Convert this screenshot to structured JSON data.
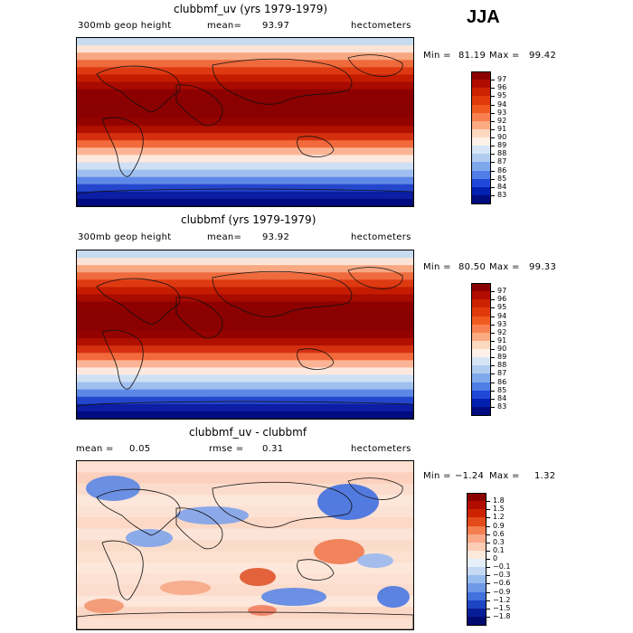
{
  "season": "JJA",
  "panels": [
    {
      "title": "clubbmf_uv (yrs 1979-1979)",
      "left_label": "300mb geop height",
      "mean_label": "mean=",
      "mean_value": "93.97",
      "units": "hectometers",
      "min_label": "Min =",
      "min_value": "81.19",
      "max_label": "Max =",
      "max_value": "99.42",
      "colorbar": {
        "labels": [
          "97",
          "96",
          "95",
          "94",
          "93",
          "92",
          "91",
          "90",
          "89",
          "88",
          "87",
          "86",
          "85",
          "84",
          "83"
        ],
        "colors": [
          "#8b0000",
          "#b10c00",
          "#cc2200",
          "#e03a0a",
          "#f05a20",
          "#f88050",
          "#fcaa80",
          "#fdd8c0",
          "#fdf1e8",
          "#d6e6f6",
          "#b0cdf0",
          "#7fa8ec",
          "#4f7ee8",
          "#2048d8",
          "#0020b0",
          "#000c80"
        ]
      },
      "stripes": [
        "#c7dbf0",
        "#fbe4d5",
        "#f7a782",
        "#ef6a3c",
        "#de3a12",
        "#c51c00",
        "#a80b00",
        "#8e0000",
        "#8b0000",
        "#8b0000",
        "#8b0000",
        "#940300",
        "#b01000",
        "#d43010",
        "#f26a3c",
        "#fbb596",
        "#fde8de",
        "#cfe0f4",
        "#9fbff0",
        "#5d88e8",
        "#2446cc",
        "#0b1ea4",
        "#000b80"
      ]
    },
    {
      "title": "clubbmf (yrs 1979-1979)",
      "left_label": "300mb geop height",
      "mean_label": "mean=",
      "mean_value": "93.92",
      "units": "hectometers",
      "min_label": "Min =",
      "min_value": "80.50",
      "max_label": "Max =",
      "max_value": "99.33",
      "colorbar": {
        "labels": [
          "97",
          "96",
          "95",
          "94",
          "93",
          "92",
          "91",
          "90",
          "89",
          "88",
          "87",
          "86",
          "85",
          "84",
          "83"
        ],
        "colors": [
          "#8b0000",
          "#b10c00",
          "#cc2200",
          "#e03a0a",
          "#f05a20",
          "#f88050",
          "#fcaa80",
          "#fdd8c0",
          "#fdf1e8",
          "#d6e6f6",
          "#b0cdf0",
          "#7fa8ec",
          "#4f7ee8",
          "#2048d8",
          "#0020b0",
          "#000c80"
        ]
      },
      "stripes": [
        "#c7dbf0",
        "#fbe4d5",
        "#f7a782",
        "#ef6a3c",
        "#de3a12",
        "#c51c00",
        "#a80b00",
        "#8e0000",
        "#8b0000",
        "#8b0000",
        "#8b0000",
        "#940300",
        "#b01000",
        "#d43010",
        "#f26a3c",
        "#fbb596",
        "#fde8de",
        "#cfe0f4",
        "#9fbff0",
        "#5d88e8",
        "#2446cc",
        "#0b1ea4",
        "#000b80"
      ]
    },
    {
      "title": "clubbmf_uv - clubbmf",
      "left_label": "mean =",
      "left_value": "0.05",
      "rmse_label": "rmse =",
      "rmse_value": "0.31",
      "units": "hectometers",
      "min_label": "Min =",
      "min_value": "−1.24",
      "max_label": "Max =",
      "max_value": "1.32",
      "colorbar": {
        "labels": [
          "1.8",
          "1.5",
          "1.2",
          "0.9",
          "0.6",
          "0.3",
          "0.1",
          "0",
          "−0.1",
          "−0.3",
          "−0.6",
          "−0.9",
          "−1.2",
          "−1.5",
          "−1.8"
        ],
        "colors": [
          "#8b0000",
          "#b10c00",
          "#cc2200",
          "#e44a1a",
          "#f47e50",
          "#f9a888",
          "#fcccb4",
          "#fde8dc",
          "#e6eff9",
          "#c5d9f2",
          "#98bcee",
          "#6f98e6",
          "#4270dc",
          "#1c44c4",
          "#081c98",
          "#000a70"
        ]
      },
      "stripes": [
        "#fde0d2",
        "#fcd0bc",
        "#fbdccc",
        "#fde6da",
        "#fbe2d4",
        "#fcd8c6",
        "#fde4d8",
        "#fbdcca",
        "#fce0d0",
        "#fde6da",
        "#fde2d4",
        "#fcdccc",
        "#fde6da",
        "#fbd8c6",
        "#fce0d2"
      ]
    }
  ]
}
